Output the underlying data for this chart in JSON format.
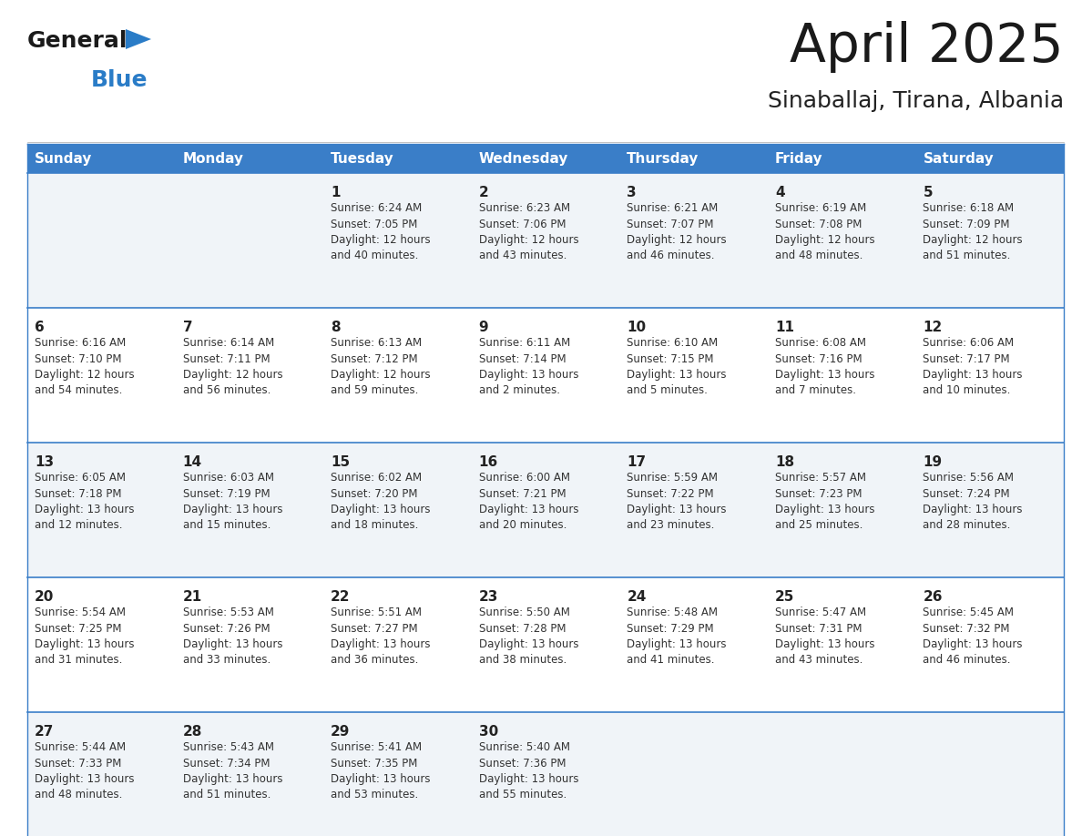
{
  "title": "April 2025",
  "subtitle": "Sinaballaj, Tirana, Albania",
  "days_of_week": [
    "Sunday",
    "Monday",
    "Tuesday",
    "Wednesday",
    "Thursday",
    "Friday",
    "Saturday"
  ],
  "header_bg_color": "#3a7ec8",
  "header_text_color": "#ffffff",
  "cell_bg_even": "#f0f4f8",
  "cell_bg_odd": "#ffffff",
  "grid_line_color": "#3a7ec8",
  "day_number_color": "#222222",
  "day_info_color": "#333333",
  "title_color": "#1a1a1a",
  "subtitle_color": "#222222",
  "logo_general_color": "#1a1a1a",
  "logo_blue_color": "#2a7cc7",
  "weeks": [
    [
      {
        "day": null,
        "info": null
      },
      {
        "day": null,
        "info": null
      },
      {
        "day": 1,
        "info": "Sunrise: 6:24 AM\nSunset: 7:05 PM\nDaylight: 12 hours\nand 40 minutes."
      },
      {
        "day": 2,
        "info": "Sunrise: 6:23 AM\nSunset: 7:06 PM\nDaylight: 12 hours\nand 43 minutes."
      },
      {
        "day": 3,
        "info": "Sunrise: 6:21 AM\nSunset: 7:07 PM\nDaylight: 12 hours\nand 46 minutes."
      },
      {
        "day": 4,
        "info": "Sunrise: 6:19 AM\nSunset: 7:08 PM\nDaylight: 12 hours\nand 48 minutes."
      },
      {
        "day": 5,
        "info": "Sunrise: 6:18 AM\nSunset: 7:09 PM\nDaylight: 12 hours\nand 51 minutes."
      }
    ],
    [
      {
        "day": 6,
        "info": "Sunrise: 6:16 AM\nSunset: 7:10 PM\nDaylight: 12 hours\nand 54 minutes."
      },
      {
        "day": 7,
        "info": "Sunrise: 6:14 AM\nSunset: 7:11 PM\nDaylight: 12 hours\nand 56 minutes."
      },
      {
        "day": 8,
        "info": "Sunrise: 6:13 AM\nSunset: 7:12 PM\nDaylight: 12 hours\nand 59 minutes."
      },
      {
        "day": 9,
        "info": "Sunrise: 6:11 AM\nSunset: 7:14 PM\nDaylight: 13 hours\nand 2 minutes."
      },
      {
        "day": 10,
        "info": "Sunrise: 6:10 AM\nSunset: 7:15 PM\nDaylight: 13 hours\nand 5 minutes."
      },
      {
        "day": 11,
        "info": "Sunrise: 6:08 AM\nSunset: 7:16 PM\nDaylight: 13 hours\nand 7 minutes."
      },
      {
        "day": 12,
        "info": "Sunrise: 6:06 AM\nSunset: 7:17 PM\nDaylight: 13 hours\nand 10 minutes."
      }
    ],
    [
      {
        "day": 13,
        "info": "Sunrise: 6:05 AM\nSunset: 7:18 PM\nDaylight: 13 hours\nand 12 minutes."
      },
      {
        "day": 14,
        "info": "Sunrise: 6:03 AM\nSunset: 7:19 PM\nDaylight: 13 hours\nand 15 minutes."
      },
      {
        "day": 15,
        "info": "Sunrise: 6:02 AM\nSunset: 7:20 PM\nDaylight: 13 hours\nand 18 minutes."
      },
      {
        "day": 16,
        "info": "Sunrise: 6:00 AM\nSunset: 7:21 PM\nDaylight: 13 hours\nand 20 minutes."
      },
      {
        "day": 17,
        "info": "Sunrise: 5:59 AM\nSunset: 7:22 PM\nDaylight: 13 hours\nand 23 minutes."
      },
      {
        "day": 18,
        "info": "Sunrise: 5:57 AM\nSunset: 7:23 PM\nDaylight: 13 hours\nand 25 minutes."
      },
      {
        "day": 19,
        "info": "Sunrise: 5:56 AM\nSunset: 7:24 PM\nDaylight: 13 hours\nand 28 minutes."
      }
    ],
    [
      {
        "day": 20,
        "info": "Sunrise: 5:54 AM\nSunset: 7:25 PM\nDaylight: 13 hours\nand 31 minutes."
      },
      {
        "day": 21,
        "info": "Sunrise: 5:53 AM\nSunset: 7:26 PM\nDaylight: 13 hours\nand 33 minutes."
      },
      {
        "day": 22,
        "info": "Sunrise: 5:51 AM\nSunset: 7:27 PM\nDaylight: 13 hours\nand 36 minutes."
      },
      {
        "day": 23,
        "info": "Sunrise: 5:50 AM\nSunset: 7:28 PM\nDaylight: 13 hours\nand 38 minutes."
      },
      {
        "day": 24,
        "info": "Sunrise: 5:48 AM\nSunset: 7:29 PM\nDaylight: 13 hours\nand 41 minutes."
      },
      {
        "day": 25,
        "info": "Sunrise: 5:47 AM\nSunset: 7:31 PM\nDaylight: 13 hours\nand 43 minutes."
      },
      {
        "day": 26,
        "info": "Sunrise: 5:45 AM\nSunset: 7:32 PM\nDaylight: 13 hours\nand 46 minutes."
      }
    ],
    [
      {
        "day": 27,
        "info": "Sunrise: 5:44 AM\nSunset: 7:33 PM\nDaylight: 13 hours\nand 48 minutes."
      },
      {
        "day": 28,
        "info": "Sunrise: 5:43 AM\nSunset: 7:34 PM\nDaylight: 13 hours\nand 51 minutes."
      },
      {
        "day": 29,
        "info": "Sunrise: 5:41 AM\nSunset: 7:35 PM\nDaylight: 13 hours\nand 53 minutes."
      },
      {
        "day": 30,
        "info": "Sunrise: 5:40 AM\nSunset: 7:36 PM\nDaylight: 13 hours\nand 55 minutes."
      },
      {
        "day": null,
        "info": null
      },
      {
        "day": null,
        "info": null
      },
      {
        "day": null,
        "info": null
      }
    ]
  ]
}
